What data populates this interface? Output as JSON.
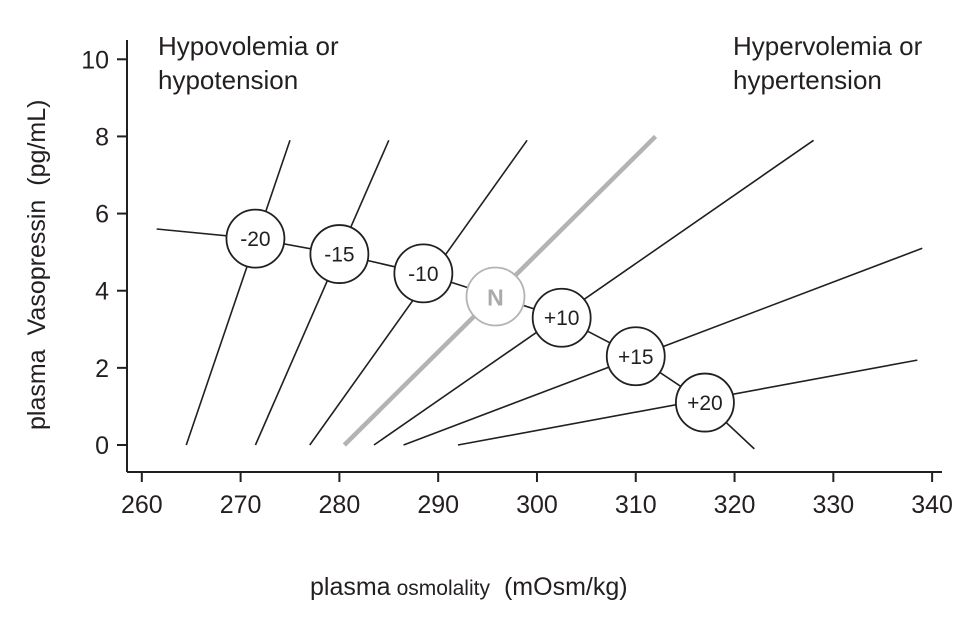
{
  "chart_data": {
    "type": "line",
    "xlabel_part1": "plasma",
    "xlabel_part2": "osmolality",
    "xlabel_part3": "(mOsm/kg)",
    "ylabel_part1": "plasma",
    "ylabel_part2": "Vasopressin",
    "ylabel_part3": "(pg/mL)",
    "xlim": [
      258.5,
      341
    ],
    "ylim": [
      -0.7,
      10.5
    ],
    "x_ticks": [
      260,
      270,
      280,
      290,
      300,
      310,
      320,
      330,
      340
    ],
    "y_ticks": [
      0,
      2,
      4,
      6,
      8,
      10
    ],
    "grid": false,
    "annotations": {
      "left": [
        "Hypovolemia or",
        "hypotension"
      ],
      "right": [
        "Hypervolemia or",
        "hypertension"
      ]
    },
    "series": [
      {
        "label": "-20",
        "points": [
          [
            264.5,
            0
          ],
          [
            275,
            7.9
          ]
        ],
        "color": "#231f20"
      },
      {
        "label": "-15",
        "points": [
          [
            271.5,
            0
          ],
          [
            285,
            7.9
          ]
        ],
        "color": "#231f20"
      },
      {
        "label": "-10",
        "points": [
          [
            277,
            0
          ],
          [
            299,
            7.9
          ]
        ],
        "color": "#231f20"
      },
      {
        "label": "N",
        "points": [
          [
            280.5,
            0
          ],
          [
            312,
            8.0
          ]
        ],
        "color": "#b3b3b3"
      },
      {
        "label": "+10",
        "points": [
          [
            283.5,
            0
          ],
          [
            328,
            7.9
          ]
        ],
        "color": "#231f20"
      },
      {
        "label": "+15",
        "points": [
          [
            286.5,
            0
          ],
          [
            339,
            5.1
          ]
        ],
        "color": "#231f20"
      },
      {
        "label": "+20",
        "points": [
          [
            292,
            0
          ],
          [
            338.5,
            2.2
          ]
        ],
        "color": "#231f20"
      }
    ],
    "volume_curve": {
      "points": [
        [
          261.5,
          5.6
        ],
        [
          271.5,
          5.35
        ],
        [
          280,
          4.95
        ],
        [
          288.5,
          4.45
        ],
        [
          295.8,
          3.85
        ],
        [
          302.5,
          3.3
        ],
        [
          310,
          2.3
        ],
        [
          317,
          1.1
        ],
        [
          322,
          -0.1
        ]
      ],
      "color": "#231f20"
    },
    "markers": [
      {
        "label": "-20",
        "x": 271.5,
        "y": 5.35,
        "color": "#231f20"
      },
      {
        "label": "-15",
        "x": 280,
        "y": 4.95,
        "color": "#231f20"
      },
      {
        "label": "-10",
        "x": 288.5,
        "y": 4.45,
        "color": "#231f20"
      },
      {
        "label": "N",
        "x": 295.8,
        "y": 3.85,
        "color": "#b3b3b3"
      },
      {
        "label": "+10",
        "x": 302.5,
        "y": 3.3,
        "color": "#231f20"
      },
      {
        "label": "+15",
        "x": 310,
        "y": 2.3,
        "color": "#231f20"
      },
      {
        "label": "+20",
        "x": 317,
        "y": 1.1,
        "color": "#231f20"
      }
    ]
  }
}
